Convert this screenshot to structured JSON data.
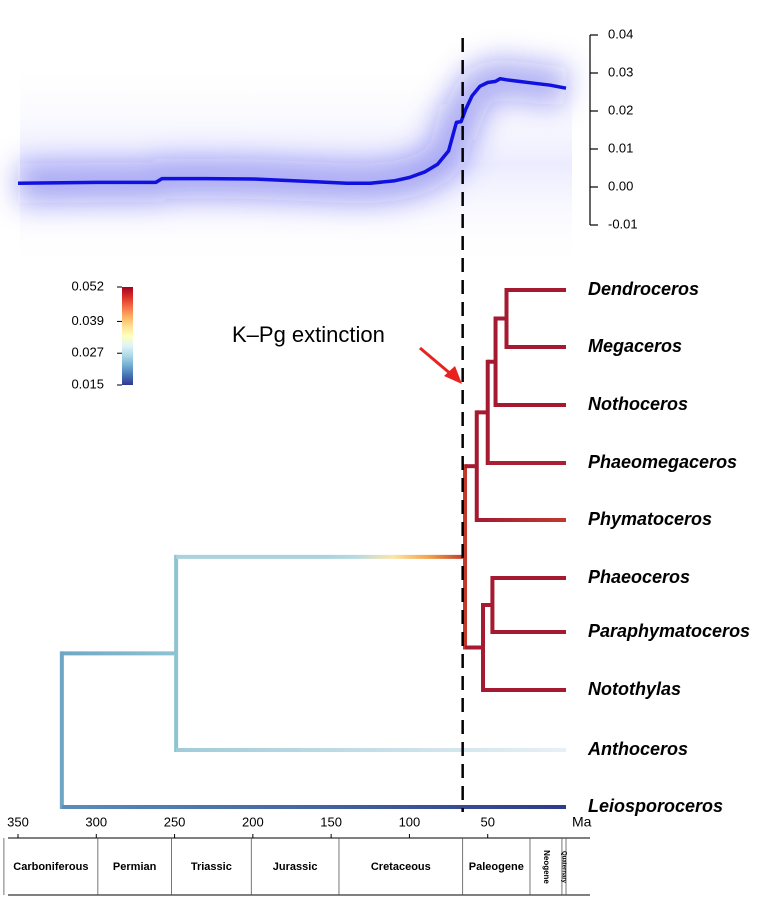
{
  "chart_data": [
    {
      "type": "line",
      "series": [
        {
          "color": "#1010e0",
          "x": [
            350,
            300,
            262,
            258,
            230,
            200,
            160,
            140,
            125,
            110,
            100,
            90,
            82,
            75,
            70,
            67,
            64,
            60,
            55,
            50,
            45,
            42,
            38,
            30,
            20,
            10,
            0
          ],
          "values": [
            0.001,
            0.0012,
            0.0012,
            0.0022,
            0.0022,
            0.0021,
            0.0014,
            0.001,
            0.001,
            0.0016,
            0.0025,
            0.004,
            0.006,
            0.0095,
            0.017,
            0.0172,
            0.0205,
            0.024,
            0.0265,
            0.0275,
            0.0278,
            0.0285,
            0.0282,
            0.0278,
            0.0273,
            0.0268,
            0.026
          ]
        }
      ],
      "xlim": [
        350,
        0
      ],
      "ylim": [
        -0.01,
        0.04
      ],
      "yticks": [
        0.04,
        0.03,
        0.02,
        0.01,
        {
          "value": 0,
          "label": "0.00"
        },
        -0.01
      ]
    },
    {
      "type": "tree",
      "xlim": [
        350,
        0
      ],
      "xticks": [
        350,
        300,
        250,
        200,
        150,
        100,
        50
      ],
      "xlabel": "Ma",
      "annotation": {
        "text": "K–Pg extinction",
        "x": 66
      },
      "periods": {
        "bins": [
          359,
          299,
          252,
          201,
          145,
          66,
          23,
          2.6,
          0
        ],
        "names": [
          "Carboniferous",
          "Permian",
          "Triassic",
          "Jurassic",
          "Cretaceous",
          "Paleogene",
          "Neogene",
          "Quaternary"
        ]
      },
      "colorbar": {
        "lim": [
          0.015,
          0.052
        ],
        "ticks": [
          0.052,
          0.039,
          0.027,
          0.015
        ],
        "colors": [
          "#313695",
          "#4575b4",
          "#74add1",
          "#abd9e9",
          "#e0f3f8",
          "#ffffbf",
          "#fee090",
          "#fdae61",
          "#f46d43",
          "#d73027",
          "#a50026"
        ]
      },
      "tree": {
        "age": 322,
        "color": "#6fa6c4",
        "children": [
          {
            "age": 249,
            "color": [
              "#6fa6c4",
              "#8ec3d3"
            ],
            "children": [
              {
                "age": 64.5,
                "color": [
                  "#a8d2dc",
                  "#a8d2dc",
                  "#a8d2dc",
                  "#a8d2dc",
                  "#a8d2dc",
                  "#b8d9e1",
                  "#fbe6a8",
                  "#f2a24a",
                  "#c0392b"
                ],
                "children": [
                  {
                    "age": 57,
                    "color": "#a51a31",
                    "children": [
                      {
                        "age": 50,
                        "color": "#a51a31",
                        "children": [
                          {
                            "age": 45,
                            "color": "#a51a31",
                            "children": [
                              {
                                "age": 38,
                                "color": "#a51a31",
                                "children": [
                                  {
                                    "name": "Dendroceros",
                                    "color": "#a51a31"
                                  },
                                  {
                                    "name": "Megaceros",
                                    "color": "#a51a31"
                                  }
                                ]
                              },
                              {
                                "name": "Nothoceros",
                                "color": "#a51a31"
                              }
                            ]
                          },
                          {
                            "name": "Phaeomegaceros",
                            "color": "#ac1f33"
                          }
                        ]
                      },
                      {
                        "name": "Phymatoceros",
                        "color": [
                          "#a51a31",
                          "#c0392f"
                        ]
                      }
                    ]
                  },
                  {
                    "age": 53,
                    "color": "#a51a31",
                    "children": [
                      {
                        "age": 47,
                        "color": "#a51a31",
                        "children": [
                          {
                            "name": "Phaeoceros",
                            "color": "#a51a31"
                          },
                          {
                            "name": "Paraphymatoceros",
                            "color": "#a51a31"
                          }
                        ]
                      },
                      {
                        "name": "Notothylas",
                        "color": "#a51a31"
                      }
                    ]
                  }
                ]
              },
              {
                "name": "Anthoceros",
                "color": [
                  "#a0ccd8",
                  "#e8f0f5"
                ]
              }
            ]
          },
          {
            "name": "Leiosporoceros",
            "color": [
              "#5a8dbb",
              "#2e3b8a"
            ]
          }
        ]
      }
    }
  ]
}
